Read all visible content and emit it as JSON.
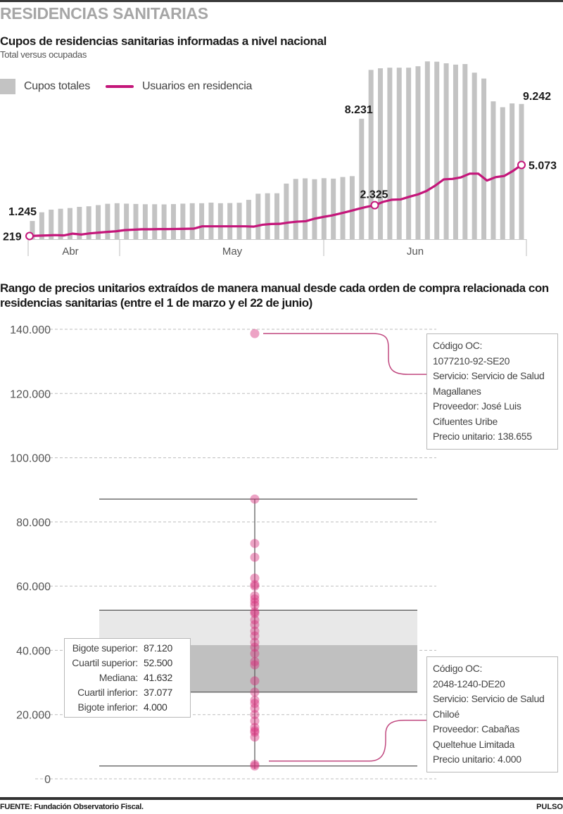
{
  "header": {
    "section_title": "RESIDENCIAS SANITARIAS"
  },
  "footer": {
    "source": "FUENTE: Fundación Observatorio Fiscal.",
    "brand": "PULSO"
  },
  "chart_data": [
    {
      "type": "bar",
      "title": "Cupos de residencias sanitarias informadas a nivel nacional",
      "subtitle": "Total versus ocupadas",
      "legend": {
        "placement": "top-left",
        "items": [
          "Cupos totales",
          "Usuarios en residencia"
        ]
      },
      "colors": {
        "bars": "#c3c3c3",
        "line": "#c4167a"
      },
      "x_months": [
        "Abr",
        "May",
        "Jun"
      ],
      "month_start_index": [
        0,
        9,
        39
      ],
      "series": [
        {
          "name": "Cupos totales",
          "type": "bar",
          "values": [
            1245,
            1840,
            2020,
            2080,
            2130,
            2210,
            2250,
            2330,
            2420,
            2460,
            2430,
            2410,
            2390,
            2390,
            2380,
            2400,
            2430,
            2460,
            2460,
            2500,
            2460,
            2470,
            2490,
            2690,
            3110,
            3140,
            3140,
            3800,
            4120,
            4160,
            4100,
            4170,
            4140,
            4250,
            4310,
            8231,
            11570,
            11680,
            11720,
            11720,
            11720,
            11820,
            12150,
            12130,
            12020,
            11930,
            11970,
            11380,
            10980,
            9420,
            9020,
            9280,
            9242
          ]
        },
        {
          "name": "Usuarios en residencia",
          "type": "line",
          "values": [
            219,
            240,
            260,
            280,
            260,
            380,
            320,
            400,
            450,
            500,
            540,
            620,
            650,
            680,
            680,
            690,
            690,
            700,
            710,
            720,
            880,
            880,
            880,
            880,
            880,
            880,
            860,
            990,
            1040,
            1050,
            1140,
            1200,
            1230,
            1400,
            1520,
            1620,
            1760,
            1900,
            2060,
            2200,
            2325,
            2560,
            2700,
            2720,
            2900,
            3060,
            3300,
            3660,
            4090,
            4120,
            4230,
            4480,
            4480,
            4010,
            4240,
            4320,
            4660,
            5073
          ]
        }
      ],
      "annotations": [
        {
          "series": "Cupos totales",
          "label": "1.245",
          "position": "first"
        },
        {
          "series": "Cupos totales",
          "label": "8.231",
          "position": "jump"
        },
        {
          "series": "Cupos totales",
          "label": "9.242",
          "position": "last"
        },
        {
          "series": "Usuarios en residencia",
          "label": "219",
          "position": "first"
        },
        {
          "series": "Usuarios en residencia",
          "label": "2.325",
          "position": "middle"
        },
        {
          "series": "Usuarios en residencia",
          "label": "5.073",
          "position": "last"
        }
      ],
      "ylim": [
        0,
        12500
      ],
      "grid": false
    },
    {
      "type": "scatter",
      "subtype": "box-strip",
      "title": "Rango de precios unitarios extraídos de manera manual desde cada orden de compra relacionada con residencias sanitarias (entre el 1 de marzo y el 22 de junio)",
      "ylim": [
        0,
        140000
      ],
      "yticks": [
        0,
        20000,
        40000,
        60000,
        80000,
        100000,
        120000,
        140000
      ],
      "ytick_labels": [
        "0",
        "20.000",
        "40.000",
        "60.000",
        "80.000",
        "100.000",
        "120.000",
        "140.000"
      ],
      "grid": "dashed-horizontal",
      "colors": {
        "dots": "#d6337f",
        "box_upper": "#e8e8e8",
        "box_lower": "#c0c0c0",
        "whisker": "#555555",
        "leader": "#c0487f"
      },
      "box": {
        "whisker_upper": 87120,
        "quartile_upper": 52500,
        "median": 41632,
        "quartile_lower": 37077,
        "whisker_lower": 4000,
        "drawn_lower_box_edge": 27000
      },
      "stats_box": {
        "rows": [
          {
            "label": "Bigote superior:",
            "value": "87.120"
          },
          {
            "label": "Cuartil superior:",
            "value": "52.500"
          },
          {
            "label": "Mediana:",
            "value": "41.632"
          },
          {
            "label": "Cuartil inferior:",
            "value": "37.077"
          },
          {
            "label": "Bigote inferior:",
            "value": "4.000"
          }
        ]
      },
      "points": [
        138655,
        87120,
        73300,
        69000,
        62500,
        60500,
        60000,
        57000,
        56000,
        55000,
        54000,
        52000,
        51500,
        49500,
        48000,
        46000,
        44500,
        42500,
        41000,
        39000,
        36500,
        35500,
        30500,
        27000,
        24500,
        23500,
        22000,
        20000,
        18000,
        16000,
        15000,
        14500,
        13000,
        4500,
        4000
      ],
      "callouts": [
        {
          "target_value": 138655,
          "lines": [
            "Código OC:",
            "1077210-92-SE20",
            "Servicio: Servicio de Salud",
            "Magallanes",
            "Proveedor: José Luis",
            "Cifuentes Uribe",
            "Precio unitario: 138.655"
          ]
        },
        {
          "target_value": 4000,
          "lines": [
            "Código OC:",
            "2048-1240-DE20",
            "Servicio: Servicio de Salud",
            "Chiloé",
            "Proveedor: Cabañas",
            "Queltehue Limitada",
            "Precio unitario: 4.000"
          ]
        }
      ]
    }
  ]
}
